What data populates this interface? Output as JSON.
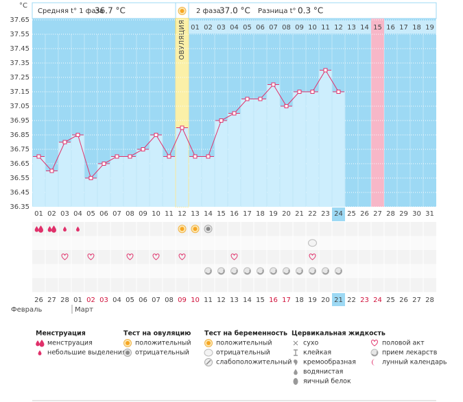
{
  "header": {
    "unit": "°C",
    "phase1": "Средняя t° 1 фаза",
    "phase1_value": "36.7 °C",
    "phase2": "2 фаза",
    "phase2_value": "37.0 °C",
    "diff": "Разница t°",
    "diff_value": "0.3 °C"
  },
  "chart_data": {
    "type": "line",
    "categories": [
      "01",
      "02",
      "03",
      "04",
      "05",
      "06",
      "07",
      "08",
      "09",
      "10",
      "11",
      "12",
      "13",
      "14",
      "15",
      "16",
      "17",
      "18",
      "19",
      "20",
      "21",
      "22",
      "23",
      "24",
      "25",
      "26",
      "27",
      "28",
      "29",
      "30",
      "31"
    ],
    "values": [
      36.7,
      36.6,
      36.8,
      36.85,
      36.55,
      36.65,
      36.7,
      36.7,
      36.75,
      36.85,
      36.7,
      36.9,
      36.7,
      36.7,
      36.95,
      37.0,
      37.1,
      37.1,
      37.2,
      37.05,
      37.15,
      37.15,
      37.3,
      37.15,
      null,
      null,
      null,
      null,
      null,
      null,
      null
    ],
    "line_color": "#e0306a",
    "area_color": "#cdeefd",
    "background_color": "#9dd9f4",
    "ylim": [
      36.35,
      37.65
    ],
    "yticks": [
      36.35,
      36.45,
      36.55,
      36.65,
      36.75,
      36.85,
      36.95,
      37.05,
      37.15,
      37.25,
      37.35,
      37.45,
      37.55,
      37.65
    ],
    "grid": true,
    "ovulation_label": "ОВУЛЯЦИЯ",
    "ovulation_category": "12",
    "highlight_category": "27",
    "current_category": "24",
    "phase2_days": [
      "01",
      "02",
      "03",
      "04",
      "05",
      "06",
      "07",
      "08",
      "09",
      "10",
      "11",
      "12",
      "13",
      "14",
      "15",
      "16",
      "17",
      "18",
      "19"
    ]
  },
  "events": [
    [
      {
        "day": "01",
        "symbol": "menstruation-heavy"
      },
      {
        "day": "02",
        "symbol": "menstruation-heavy"
      },
      {
        "day": "03",
        "symbol": "menstruation-light"
      },
      {
        "day": "04",
        "symbol": "menstruation-light"
      },
      {
        "day": "12",
        "symbol": "ovulation-positive"
      },
      {
        "day": "13",
        "symbol": "ovulation-positive"
      },
      {
        "day": "14",
        "symbol": "ovulation-negative"
      }
    ],
    [
      {
        "day": "22",
        "symbol": "pregnancy-negative"
      }
    ],
    [
      {
        "day": "03",
        "symbol": "heart"
      },
      {
        "day": "05",
        "symbol": "heart"
      },
      {
        "day": "08",
        "symbol": "heart"
      },
      {
        "day": "10",
        "symbol": "heart"
      },
      {
        "day": "12",
        "symbol": "heart"
      },
      {
        "day": "16",
        "symbol": "heart"
      },
      {
        "day": "22",
        "symbol": "heart"
      }
    ],
    [
      {
        "day": "14",
        "symbol": "pill"
      },
      {
        "day": "15",
        "symbol": "pill"
      },
      {
        "day": "16",
        "symbol": "pill"
      },
      {
        "day": "17",
        "symbol": "pill"
      },
      {
        "day": "18",
        "symbol": "pill"
      },
      {
        "day": "19",
        "symbol": "pill"
      },
      {
        "day": "20",
        "symbol": "pill"
      },
      {
        "day": "21",
        "symbol": "pill"
      },
      {
        "day": "22",
        "symbol": "pill"
      },
      {
        "day": "23",
        "symbol": "pill"
      },
      {
        "day": "24",
        "symbol": "pill"
      }
    ],
    []
  ],
  "dates": [
    "26",
    "27",
    "28",
    "01",
    "02",
    "03",
    "04",
    "05",
    "06",
    "07",
    "08",
    "09",
    "10",
    "11",
    "12",
    "13",
    "14",
    "15",
    "16",
    "17",
    "18",
    "19",
    "20",
    "21",
    "22",
    "23",
    "24",
    "25",
    "26",
    "27",
    "28"
  ],
  "weekend_dates": [
    "02",
    "03",
    "09",
    "10",
    "16",
    "17",
    "23",
    "24"
  ],
  "today_date": "21",
  "months": [
    "Февраль",
    "Март"
  ],
  "legend": [
    {
      "title": "Менструация",
      "items": [
        {
          "symbol": "menstruation-heavy",
          "text": "менструация"
        },
        {
          "symbol": "menstruation-light",
          "text": "небольшие выделения"
        }
      ]
    },
    {
      "title": "Тест на овуляцию",
      "items": [
        {
          "symbol": "ovulation-positive",
          "text": "положительный"
        },
        {
          "symbol": "ovulation-negative",
          "text": "отрицательный"
        }
      ]
    },
    {
      "title": "Тест на беременность",
      "items": [
        {
          "symbol": "pregnancy-positive",
          "text": "положительный"
        },
        {
          "symbol": "pregnancy-negative",
          "text": "отрицательный"
        },
        {
          "symbol": "pregnancy-weak",
          "text": "слабоположительный"
        }
      ]
    },
    {
      "title": "Цервикальная жидкость",
      "items": [
        {
          "symbol": "dry",
          "text": "сухо"
        },
        {
          "symbol": "sticky",
          "text": "клейкая"
        },
        {
          "symbol": "creamy",
          "text": "кремообразная"
        },
        {
          "symbol": "watery",
          "text": "водянистая"
        },
        {
          "symbol": "egg-white",
          "text": "яичный белок"
        }
      ]
    },
    {
      "items": [
        {
          "symbol": "heart",
          "text": "половой акт"
        },
        {
          "symbol": "pill",
          "text": "прием лекарств"
        },
        {
          "symbol": "moon",
          "text": "лунный календарь"
        }
      ]
    }
  ]
}
